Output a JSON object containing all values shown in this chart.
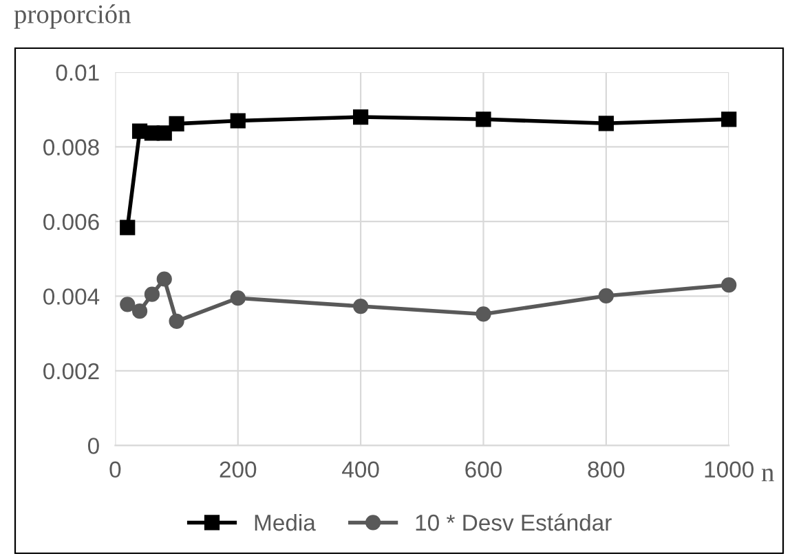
{
  "chart_data": {
    "type": "line",
    "ylabel": "proporción",
    "xlabel": "n",
    "x": [
      20,
      40,
      60,
      80,
      100,
      200,
      400,
      600,
      800,
      1000
    ],
    "series": [
      {
        "name": "Media",
        "color": "#000000",
        "marker": "square",
        "values": [
          0.00584,
          0.00842,
          0.00837,
          0.00837,
          0.00862,
          0.0087,
          0.0088,
          0.00874,
          0.00863,
          0.00874
        ]
      },
      {
        "name": "10 * Desv Estándar",
        "color": "#595959",
        "marker": "circle",
        "values": [
          0.00378,
          0.0036,
          0.00405,
          0.00446,
          0.00333,
          0.00395,
          0.00373,
          0.00352,
          0.00401,
          0.0043
        ]
      }
    ],
    "xlim": [
      0,
      1000
    ],
    "xticks": [
      0,
      200,
      400,
      600,
      800,
      1000
    ],
    "ylim": [
      0,
      0.01
    ],
    "yticks": [
      0,
      0.002,
      0.004,
      0.006,
      0.008,
      0.01
    ],
    "grid": true,
    "legend": "bottom",
    "line_style": "solid"
  }
}
